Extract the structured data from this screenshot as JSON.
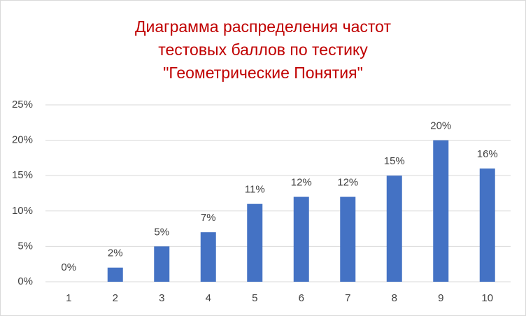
{
  "chart_data": {
    "type": "bar",
    "title": [
      "Диаграмма распределения частот",
      "тестовых баллов по тестику",
      "\"Геометрические  Понятия\""
    ],
    "categories": [
      "1",
      "2",
      "3",
      "4",
      "5",
      "6",
      "7",
      "8",
      "9",
      "10"
    ],
    "values": [
      0,
      2,
      5,
      7,
      11,
      12,
      12,
      15,
      20,
      16
    ],
    "value_labels": [
      "0%",
      "2%",
      "5%",
      "7%",
      "11%",
      "12%",
      "12%",
      "15%",
      "20%",
      "16%"
    ],
    "color": "#4472c4",
    "ylim": [
      0,
      25
    ],
    "yticks": [
      {
        "value": 0,
        "label": "0%"
      },
      {
        "value": 5,
        "label": "5%"
      },
      {
        "value": 10,
        "label": "10%"
      },
      {
        "value": 15,
        "label": "15%"
      },
      {
        "value": 20,
        "label": "20%"
      },
      {
        "value": 25,
        "label": "25%"
      }
    ],
    "grid": true
  }
}
